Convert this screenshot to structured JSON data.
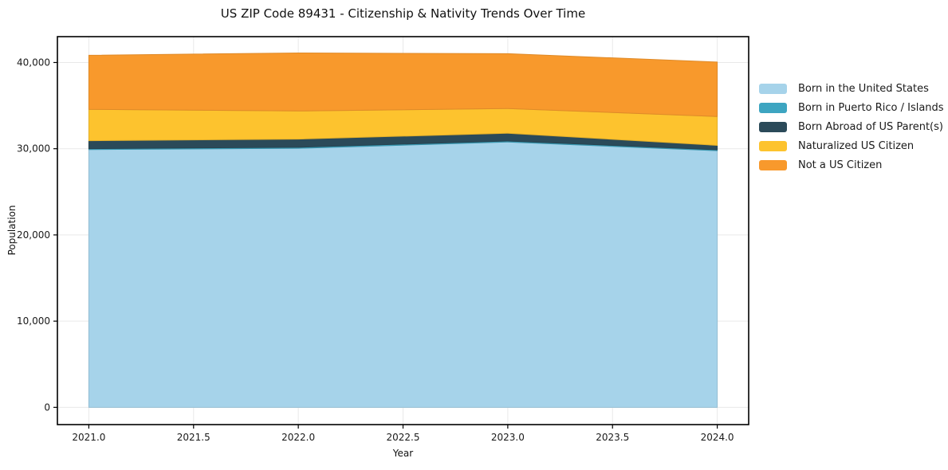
{
  "title": "US ZIP Code 89431 - Citizenship & Nativity Trends Over Time",
  "chart_data": {
    "type": "area",
    "stacked": true,
    "title": "US ZIP Code 89431 - Citizenship & Nativity Trends Over Time",
    "xlabel": "Year",
    "ylabel": "Population",
    "x": [
      2021,
      2022,
      2023,
      2024
    ],
    "series": [
      {
        "name": "Born in the United States",
        "color": "#A6D3EA",
        "values": [
          29900,
          30050,
          30780,
          29770
        ]
      },
      {
        "name": "Born in Puerto Rico / Islands",
        "color": "#3DA5C1",
        "values": [
          110,
          120,
          120,
          110
        ]
      },
      {
        "name": "Born Abroad of US Parent(s)",
        "color": "#2B4A59",
        "values": [
          920,
          950,
          900,
          510
        ]
      },
      {
        "name": "Naturalized US Citizen",
        "color": "#FDC32E",
        "values": [
          3640,
          3260,
          2860,
          3350
        ]
      },
      {
        "name": "Not a US Citizen",
        "color": "#F8992C",
        "values": [
          6270,
          6730,
          6360,
          6310
        ]
      }
    ],
    "totals": [
      40840,
      41110,
      41020,
      40050
    ],
    "xlim": [
      2020.85,
      2024.15
    ],
    "ylim": [
      -2000,
      43000
    ],
    "xticks": [
      2021.0,
      2021.5,
      2022.0,
      2022.5,
      2023.0,
      2023.5,
      2024.0
    ],
    "xtick_labels": [
      "2021.0",
      "2021.5",
      "2022.0",
      "2022.5",
      "2023.0",
      "2023.5",
      "2024.0"
    ],
    "yticks": [
      0,
      10000,
      20000,
      30000,
      40000
    ],
    "ytick_labels": [
      "0",
      "10,000",
      "20,000",
      "30,000",
      "40,000"
    ],
    "grid": true,
    "grid_color": "#e9e9e9",
    "spine_color": "#000000",
    "tick_text_color": "#1a1a1a",
    "legend_position": "outside-right"
  }
}
